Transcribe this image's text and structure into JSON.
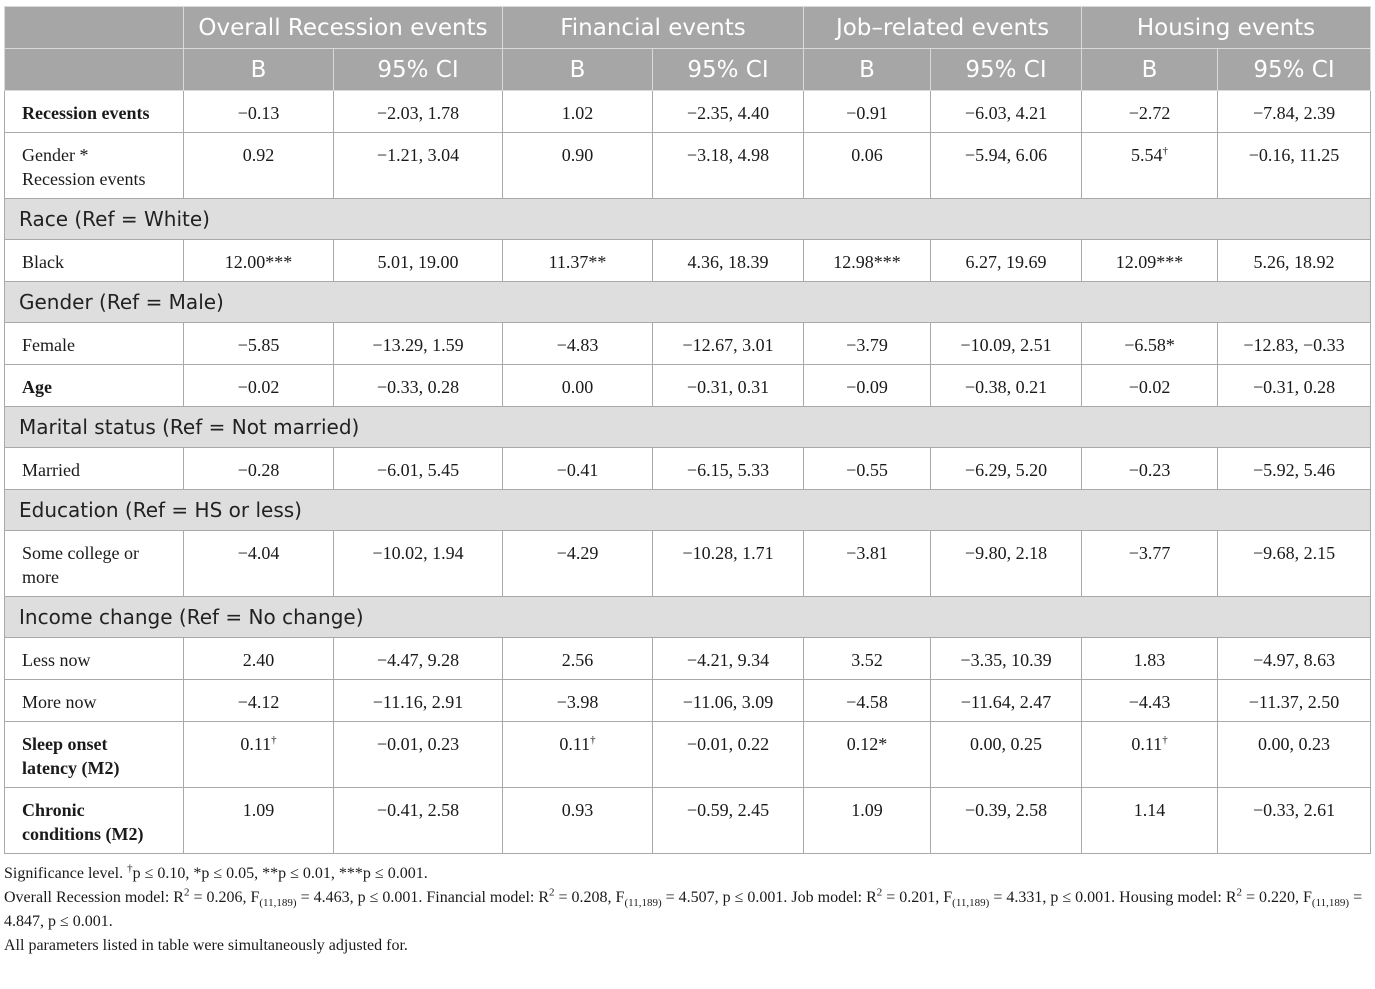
{
  "header": {
    "groups": [
      "Overall Recession events",
      "Financial events",
      "Job–related events",
      "Housing events"
    ],
    "sub": [
      "B",
      "95% CI",
      "B",
      "95% CI",
      "B",
      "95% CI",
      "B",
      "95% CI"
    ]
  },
  "rows": [
    {
      "type": "data",
      "label": "Recession events",
      "bold": true,
      "tall": false,
      "cells": [
        [
          "−0.13",
          ""
        ],
        [
          "−2.03, 1.78",
          ""
        ],
        [
          "1.02",
          ""
        ],
        [
          "−2.35, 4.40",
          ""
        ],
        [
          "−0.91",
          ""
        ],
        [
          "−6.03, 4.21",
          ""
        ],
        [
          "−2.72",
          ""
        ],
        [
          "−7.84, 2.39",
          ""
        ]
      ]
    },
    {
      "type": "data",
      "label": "Gender *\nRecession events",
      "bold": false,
      "tall": true,
      "cells": [
        [
          "0.92",
          ""
        ],
        [
          "−1.21, 3.04",
          ""
        ],
        [
          "0.90",
          ""
        ],
        [
          "−3.18, 4.98",
          ""
        ],
        [
          "0.06",
          ""
        ],
        [
          "−5.94, 6.06",
          ""
        ],
        [
          "5.54",
          "†"
        ],
        [
          "−0.16, 11.25",
          ""
        ]
      ]
    },
    {
      "type": "section",
      "label": "Race (Ref = White)"
    },
    {
      "type": "data",
      "label": "Black",
      "bold": false,
      "tall": false,
      "cells": [
        [
          "12.00***",
          ""
        ],
        [
          "5.01, 19.00",
          ""
        ],
        [
          "11.37**",
          ""
        ],
        [
          "4.36, 18.39",
          ""
        ],
        [
          "12.98***",
          ""
        ],
        [
          "6.27, 19.69",
          ""
        ],
        [
          "12.09***",
          ""
        ],
        [
          "5.26, 18.92",
          ""
        ]
      ]
    },
    {
      "type": "section",
      "label": "Gender (Ref = Male)"
    },
    {
      "type": "data",
      "label": "Female",
      "bold": false,
      "tall": false,
      "cells": [
        [
          "−5.85",
          ""
        ],
        [
          "−13.29, 1.59",
          ""
        ],
        [
          "−4.83",
          ""
        ],
        [
          "−12.67, 3.01",
          ""
        ],
        [
          "−3.79",
          ""
        ],
        [
          "−10.09, 2.51",
          ""
        ],
        [
          "−6.58*",
          ""
        ],
        [
          "−12.83, −0.33",
          ""
        ]
      ]
    },
    {
      "type": "data",
      "label": "Age",
      "bold": true,
      "tall": false,
      "cells": [
        [
          "−0.02",
          ""
        ],
        [
          "−0.33, 0.28",
          ""
        ],
        [
          "0.00",
          ""
        ],
        [
          "−0.31, 0.31",
          ""
        ],
        [
          "−0.09",
          ""
        ],
        [
          "−0.38, 0.21",
          ""
        ],
        [
          "−0.02",
          ""
        ],
        [
          "−0.31, 0.28",
          ""
        ]
      ]
    },
    {
      "type": "section",
      "label": "Marital status (Ref = Not married)"
    },
    {
      "type": "data",
      "label": "Married",
      "bold": false,
      "tall": false,
      "cells": [
        [
          "−0.28",
          ""
        ],
        [
          "−6.01, 5.45",
          ""
        ],
        [
          "−0.41",
          ""
        ],
        [
          "−6.15, 5.33",
          ""
        ],
        [
          "−0.55",
          ""
        ],
        [
          "−6.29, 5.20",
          ""
        ],
        [
          "−0.23",
          ""
        ],
        [
          "−5.92, 5.46",
          ""
        ]
      ]
    },
    {
      "type": "section",
      "label": "Education (Ref = HS or less)"
    },
    {
      "type": "data",
      "label": "Some college or\nmore",
      "bold": false,
      "tall": true,
      "cells": [
        [
          "−4.04",
          ""
        ],
        [
          "−10.02, 1.94",
          ""
        ],
        [
          "−4.29",
          ""
        ],
        [
          "−10.28, 1.71",
          ""
        ],
        [
          "−3.81",
          ""
        ],
        [
          "−9.80, 2.18",
          ""
        ],
        [
          "−3.77",
          ""
        ],
        [
          "−9.68, 2.15",
          ""
        ]
      ]
    },
    {
      "type": "section",
      "label": "Income change (Ref = No change)"
    },
    {
      "type": "data",
      "label": "Less now",
      "bold": false,
      "tall": false,
      "cells": [
        [
          "2.40",
          ""
        ],
        [
          "−4.47, 9.28",
          ""
        ],
        [
          "2.56",
          ""
        ],
        [
          "−4.21, 9.34",
          ""
        ],
        [
          "3.52",
          ""
        ],
        [
          "−3.35, 10.39",
          ""
        ],
        [
          "1.83",
          ""
        ],
        [
          "−4.97, 8.63",
          ""
        ]
      ]
    },
    {
      "type": "data",
      "label": "More now",
      "bold": false,
      "tall": false,
      "cells": [
        [
          "−4.12",
          ""
        ],
        [
          "−11.16, 2.91",
          ""
        ],
        [
          "−3.98",
          ""
        ],
        [
          "−11.06, 3.09",
          ""
        ],
        [
          "−4.58",
          ""
        ],
        [
          "−11.64, 2.47",
          ""
        ],
        [
          "−4.43",
          ""
        ],
        [
          "−11.37, 2.50",
          ""
        ]
      ]
    },
    {
      "type": "data",
      "label": "Sleep onset\nlatency (M2)",
      "bold": true,
      "tall": true,
      "cells": [
        [
          "0.11",
          "†"
        ],
        [
          "−0.01, 0.23",
          ""
        ],
        [
          "0.11",
          "†"
        ],
        [
          "−0.01, 0.22",
          ""
        ],
        [
          "0.12*",
          ""
        ],
        [
          "0.00, 0.25",
          ""
        ],
        [
          "0.11",
          "†"
        ],
        [
          "0.00, 0.23",
          ""
        ]
      ]
    },
    {
      "type": "data",
      "label": "Chronic\nconditions (M2)",
      "bold": true,
      "tall": true,
      "cells": [
        [
          "1.09",
          ""
        ],
        [
          "−0.41, 2.58",
          ""
        ],
        [
          "0.93",
          ""
        ],
        [
          "−0.59, 2.45",
          ""
        ],
        [
          "1.09",
          ""
        ],
        [
          "−0.39, 2.58",
          ""
        ],
        [
          "1.14",
          ""
        ],
        [
          "−0.33, 2.61",
          ""
        ]
      ]
    }
  ],
  "footnotes": {
    "sig": {
      "a": "Significance level. ",
      "dagger": "†",
      "b": "p ≤ 0.10, *p ≤ 0.05, **p ≤ 0.01, ***p ≤ 0.001."
    },
    "models": {
      "s1": "Overall Recession model: R",
      "sup2": "2",
      "s2": " = 0.206, F",
      "sub": "(11,189)",
      "s3": " = 4.463, p ≤ 0.001. Financial model: R",
      "s4": " = 0.208, F",
      "s5": " = 4.507, p ≤ 0.001. Job model: R",
      "s6": " = 0.201, F",
      "s7": " = 4.331, p ≤ 0.001. Housing model: R",
      "s8": " = 0.220, F",
      "s9": " = 4.847, p ≤ 0.001."
    },
    "adjusted": "All parameters listed in table were simultaneously adjusted for."
  }
}
